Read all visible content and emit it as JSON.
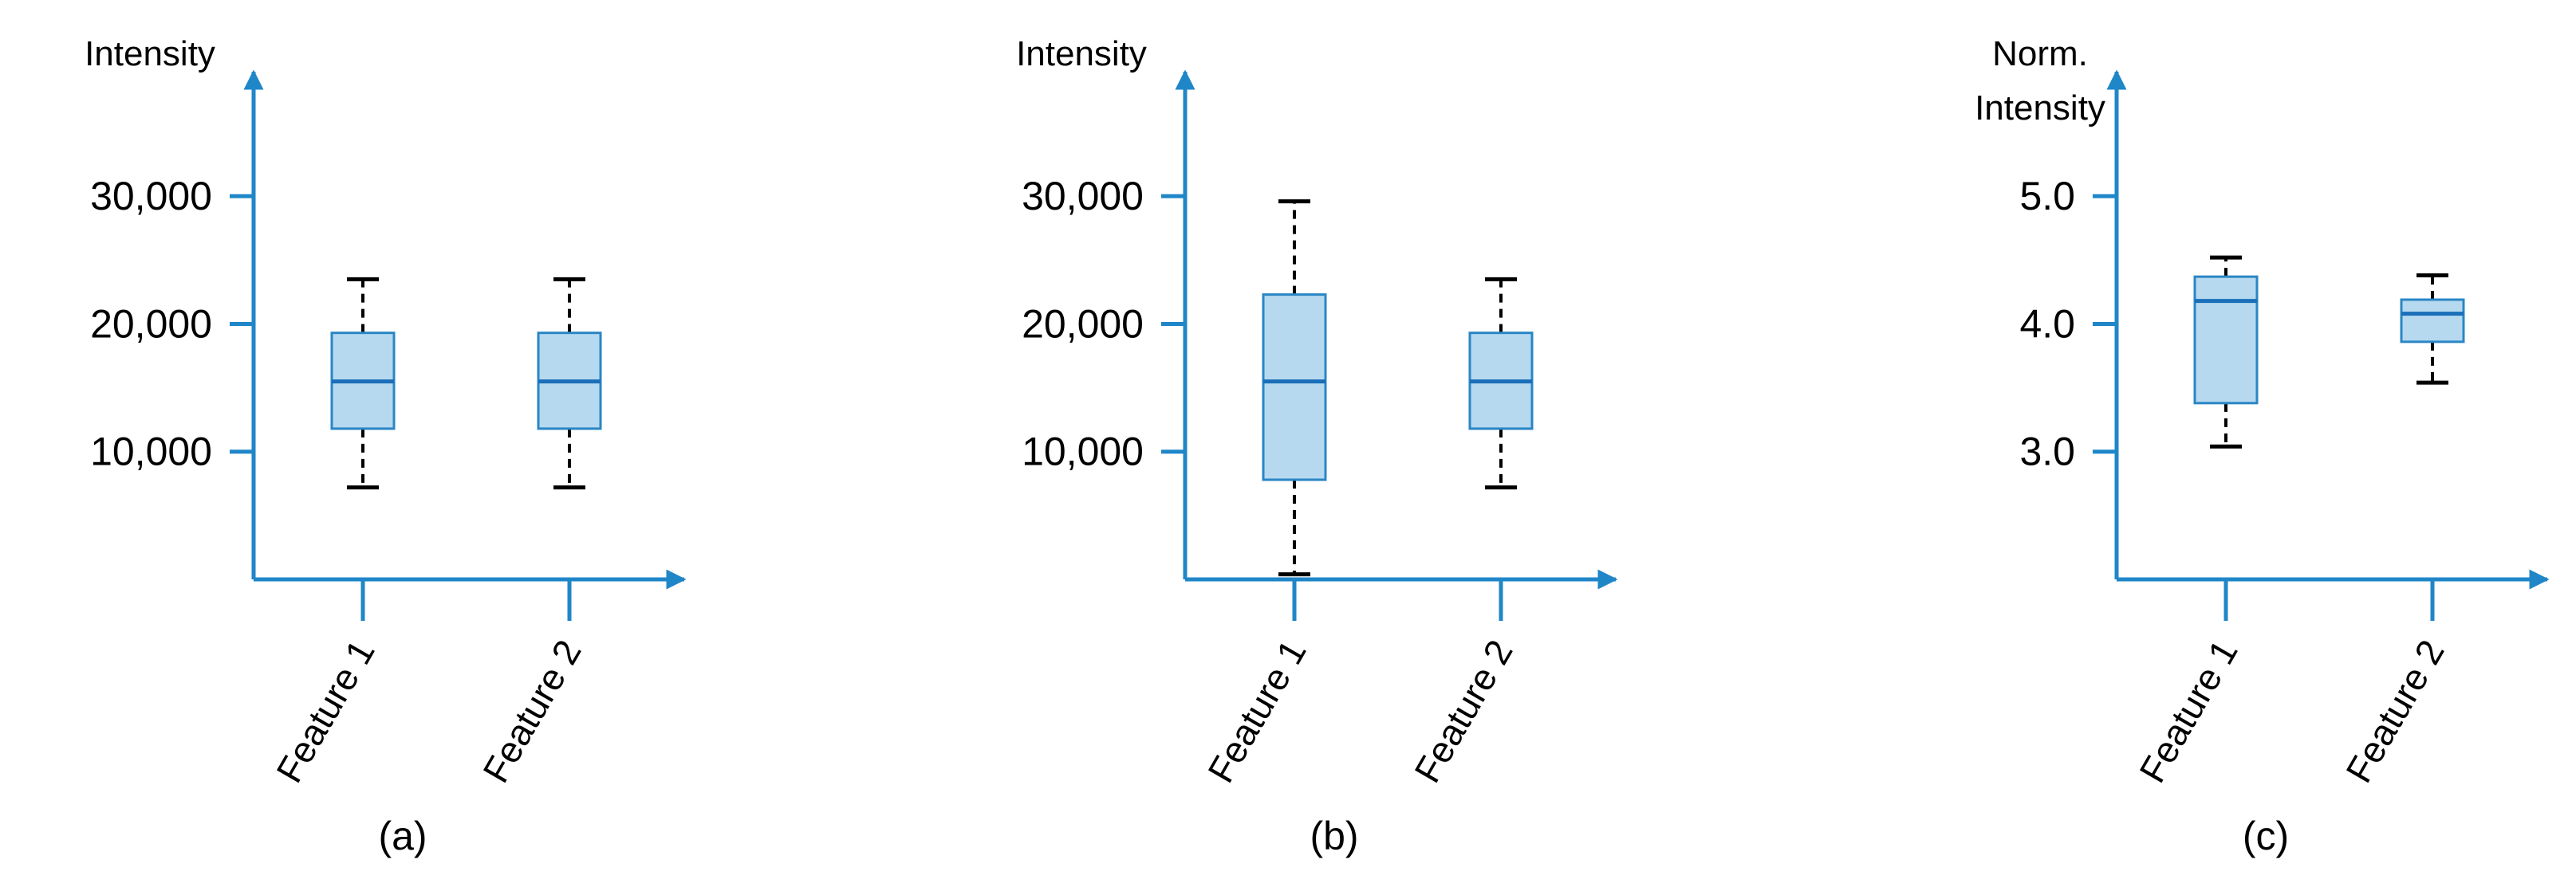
{
  "colors": {
    "axis": "#1f86c8",
    "box_fill": "#b6d9f0",
    "box_stroke": "#2a86c4",
    "median": "#1a6fb8",
    "whisker": "#000000"
  },
  "chart_data": [
    {
      "type": "box",
      "panel_label": "(a)",
      "ylabel": "Intensity",
      "ylim": [
        0,
        36000
      ],
      "yticks": [
        10000,
        20000,
        30000
      ],
      "ytick_labels": [
        "10,000",
        "20,000",
        "30,000"
      ],
      "grid": false,
      "categories": [
        "Feature 1",
        "Feature 2"
      ],
      "boxes": [
        {
          "min": 7200,
          "q1": 11800,
          "median": 15500,
          "q3": 19300,
          "max": 23500
        },
        {
          "min": 7200,
          "q1": 11800,
          "median": 15500,
          "q3": 19300,
          "max": 23500
        }
      ]
    },
    {
      "type": "box",
      "panel_label": "(b)",
      "ylabel": "Intensity",
      "ylim": [
        0,
        36000
      ],
      "yticks": [
        10000,
        20000,
        30000
      ],
      "ytick_labels": [
        "10,000",
        "20,000",
        "30,000"
      ],
      "grid": false,
      "categories": [
        "Feature 1",
        "Feature 2"
      ],
      "boxes": [
        {
          "min": 400,
          "q1": 7800,
          "median": 15500,
          "q3": 22300,
          "max": 29600
        },
        {
          "min": 7200,
          "q1": 11800,
          "median": 15500,
          "q3": 19300,
          "max": 23500
        }
      ]
    },
    {
      "type": "box",
      "panel_label": "(c)",
      "ylabel": "Norm. Intensity",
      "ylabel_lines": [
        "Norm.",
        "Intensity"
      ],
      "ylim": [
        2.0,
        5.6
      ],
      "yticks": [
        3.0,
        4.0,
        5.0
      ],
      "ytick_labels": [
        "3.0",
        "4.0",
        "5.0"
      ],
      "grid": false,
      "categories": [
        "Feature 1",
        "Feature 2"
      ],
      "boxes": [
        {
          "min": 3.04,
          "q1": 3.38,
          "median": 4.18,
          "q3": 4.37,
          "max": 4.52
        },
        {
          "min": 3.54,
          "q1": 3.86,
          "median": 4.08,
          "q3": 4.19,
          "max": 4.38
        }
      ]
    }
  ]
}
